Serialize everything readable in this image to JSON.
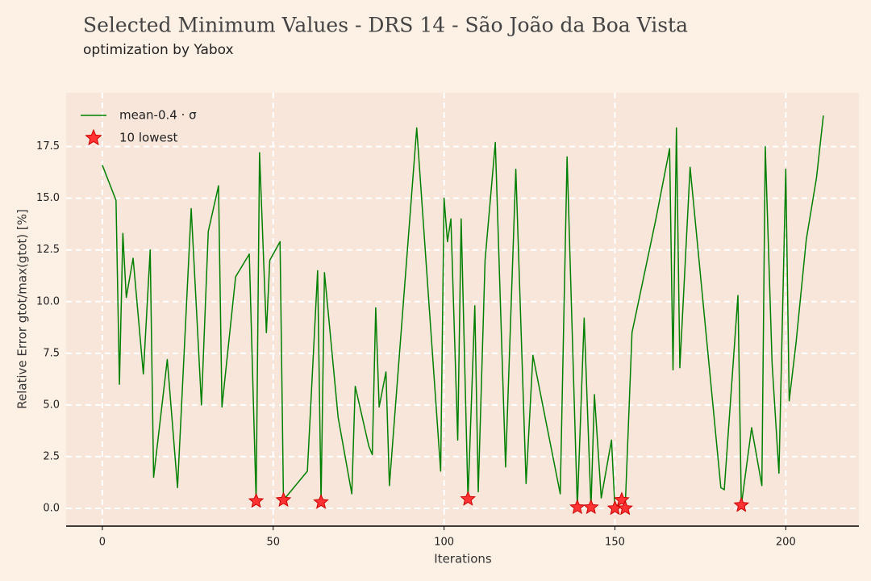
{
  "chart_data": {
    "type": "line",
    "title": "Selected Minimum Values - DRS 14 - São João da Boa Vista",
    "subtitle": "optimization by Yabox",
    "x_label": "Iterations",
    "y_label": "Relative Error gtot/max(gtot) [%]",
    "xlim": [
      -10.6,
      221.4
    ],
    "ylim": [
      -0.86,
      20.1
    ],
    "xticks": [
      0,
      50,
      100,
      150,
      200
    ],
    "yticks": [
      {
        "value": 0,
        "label": "0.0"
      },
      2.5,
      {
        "value": 5,
        "label": "5.0"
      },
      7.5,
      {
        "value": 10,
        "label": "10.0"
      },
      12.5,
      {
        "value": 15,
        "label": "15.0"
      },
      17.5
    ],
    "grid": true,
    "legend": "upper left",
    "series": [
      {
        "name": "mean-0.4 · σ",
        "type": "line",
        "color": "#008000",
        "x": [
          0,
          4,
          5,
          6,
          7,
          9,
          12,
          14,
          15,
          19,
          22,
          26,
          29,
          31,
          34,
          35,
          39,
          43,
          45,
          46,
          48,
          49,
          52,
          53,
          60,
          63,
          64,
          65,
          69,
          73,
          74,
          78,
          79,
          80,
          81,
          83,
          84,
          92,
          99,
          100,
          101,
          102,
          104,
          105,
          107,
          109,
          110,
          112,
          115,
          118,
          121,
          124,
          126,
          134,
          136,
          139,
          141,
          143,
          144,
          146,
          149,
          150,
          152,
          153,
          155,
          162,
          166,
          167,
          168,
          169,
          172,
          181,
          182,
          186,
          187,
          190,
          193,
          194,
          196,
          198,
          200,
          201,
          203,
          206,
          209,
          211
        ],
        "values": [
          16.6,
          14.9,
          6.0,
          13.3,
          10.2,
          12.1,
          6.5,
          12.5,
          1.5,
          7.2,
          1.0,
          14.5,
          5.0,
          13.4,
          15.6,
          4.9,
          11.2,
          12.3,
          0.35,
          17.2,
          8.5,
          12.0,
          12.9,
          0.4,
          1.8,
          11.5,
          0.3,
          11.4,
          4.4,
          0.7,
          5.9,
          3.0,
          2.6,
          9.7,
          4.9,
          6.6,
          1.1,
          18.4,
          1.8,
          15.0,
          12.9,
          14.0,
          3.3,
          14.0,
          0.45,
          9.8,
          0.8,
          12.0,
          17.7,
          2.0,
          16.4,
          1.2,
          7.4,
          0.7,
          17.0,
          0.05,
          9.2,
          0.05,
          5.5,
          0.5,
          3.3,
          0.0,
          0.4,
          0.0,
          8.5,
          14.0,
          17.4,
          6.7,
          18.4,
          6.8,
          16.5,
          1.0,
          0.9,
          10.3,
          0.15,
          3.9,
          1.1,
          17.5,
          7.0,
          1.7,
          16.4,
          5.2,
          8.0,
          13.0,
          16.0,
          19.0
        ]
      },
      {
        "name": "10 lowest",
        "type": "scatter",
        "marker": "star",
        "color": "#ff3333",
        "x": [
          45,
          53,
          64,
          107,
          139,
          143,
          150,
          152,
          153,
          187
        ],
        "values": [
          0.35,
          0.4,
          0.3,
          0.45,
          0.05,
          0.05,
          0.0,
          0.4,
          0.0,
          0.15
        ]
      }
    ]
  }
}
